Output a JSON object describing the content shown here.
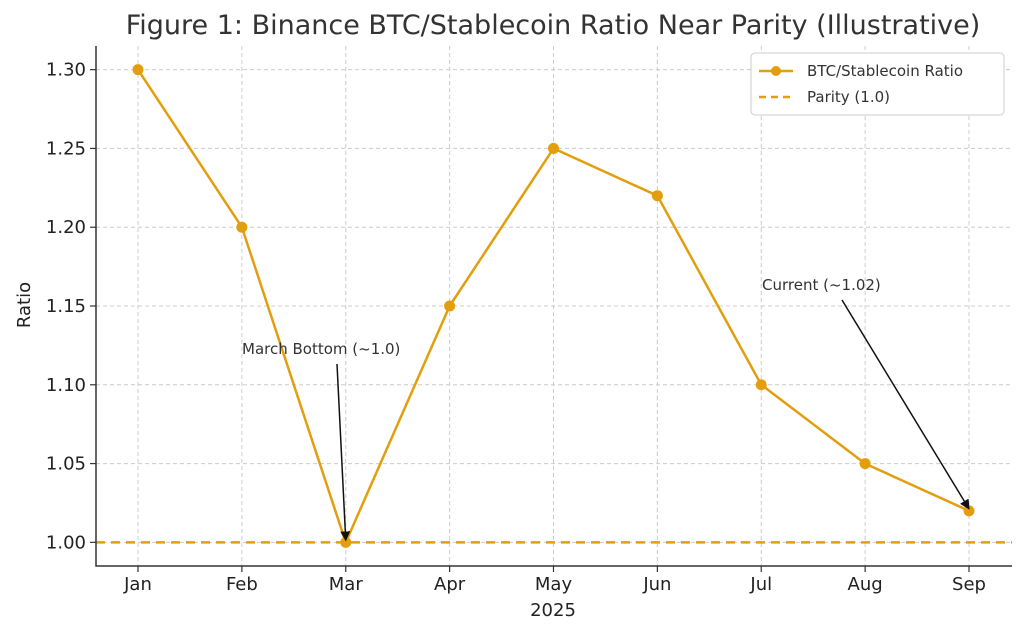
{
  "chart_data": {
    "type": "line",
    "title": "Figure 1: Binance BTC/Stablecoin Ratio Near Parity (Illustrative)",
    "xlabel": "2025",
    "ylabel": "Ratio",
    "categories": [
      "Jan",
      "Feb",
      "Mar",
      "Apr",
      "May",
      "Jun",
      "Jul",
      "Aug",
      "Sep"
    ],
    "series": [
      {
        "name": "BTC/Stablecoin Ratio",
        "values": [
          1.3,
          1.2,
          1.0,
          1.15,
          1.25,
          1.22,
          1.1,
          1.05,
          1.02
        ],
        "color": "#E39E0E"
      }
    ],
    "reference_line": {
      "name": "Parity (1.0)",
      "y": 1.0,
      "style": "dashed",
      "color": "#E39E0E"
    },
    "ylim": [
      0.985,
      1.315
    ],
    "yticks": [
      "1.00",
      "1.05",
      "1.10",
      "1.15",
      "1.20",
      "1.25",
      "1.30"
    ],
    "grid": true,
    "legend_position": "top-right",
    "annotations": [
      {
        "text": "March Bottom (~1.0)",
        "target_category": "Mar",
        "target_value": 1.0
      },
      {
        "text": "Current (~1.02)",
        "target_category": "Sep",
        "target_value": 1.02
      }
    ]
  }
}
